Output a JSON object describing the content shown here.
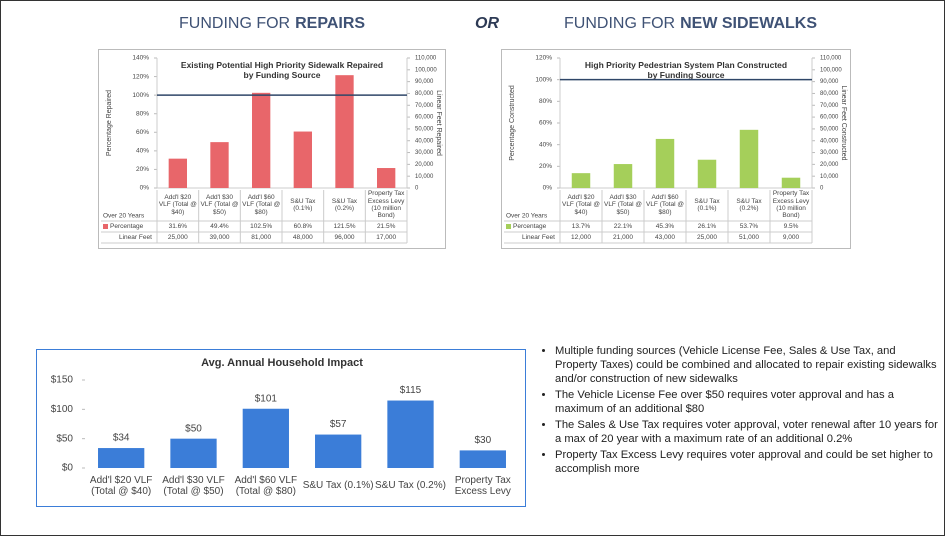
{
  "header": {
    "left": {
      "text": "FUNDING FOR",
      "emphasis": "REPAIRS"
    },
    "middle": "OR",
    "right": {
      "text": "FUNDING FOR",
      "emphasis": "NEW SIDEWALKS"
    }
  },
  "chart_data": [
    {
      "type": "bar",
      "title": "Existing Potential High Priority Sidewalk Repaired by Funding Source",
      "y_label": "Percentage Repaired",
      "y2_label": "Linear Feet Repaired",
      "categories": [
        "Add'l $20 VLF (Total @ $40)",
        "Add'l $30 VLF (Total @ $50)",
        "Add'l $60 VLF (Total @ $80)",
        "S&U Tax (0.1%)",
        "S&U Tax (0.2%)",
        "Property Tax Excess Levy (10 million Bond)"
      ],
      "series": [
        {
          "name": "Percentage",
          "color": "#e8666a",
          "values": [
            31.6,
            49.4,
            102.5,
            60.8,
            121.5,
            21.5
          ],
          "value_labels": [
            "31.6%",
            "49.4%",
            "102.5%",
            "60.8%",
            "121.5%",
            "21.5%"
          ]
        }
      ],
      "reference_line": 100,
      "ylim": [
        0,
        140
      ],
      "yticks": [
        {
          "value": 0,
          "label": "0%"
        },
        {
          "value": 20,
          "label": "20%"
        },
        {
          "value": 40,
          "label": "40%"
        },
        {
          "value": 60,
          "label": "60%"
        },
        {
          "value": 80,
          "label": "80%"
        },
        {
          "value": 100,
          "label": "100%"
        },
        {
          "value": 120,
          "label": "120%"
        },
        {
          "value": 140,
          "label": "140%"
        }
      ],
      "y2lim": [
        0,
        110000
      ],
      "y2ticks": [
        0,
        {
          "value": 10000,
          "label": "10,000"
        },
        {
          "value": 20000,
          "label": "20,000"
        },
        {
          "value": 30000,
          "label": "30,000"
        },
        {
          "value": 40000,
          "label": "40,000"
        },
        {
          "value": 50000,
          "label": "50,000"
        },
        {
          "value": 60000,
          "label": "60,000"
        },
        {
          "value": 70000,
          "label": "70,000"
        },
        {
          "value": 80000,
          "label": "80,000"
        },
        {
          "value": 90000,
          "label": "90,000"
        },
        {
          "value": 100000,
          "label": "100,000"
        },
        {
          "value": 110000,
          "label": "110,000"
        }
      ],
      "table": {
        "corner": "Over 20 Years",
        "rows": [
          {
            "name": "Linear Feet",
            "cells": [
              "25,000",
              "39,000",
              "81,000",
              "48,000",
              "96,000",
              "17,000"
            ]
          }
        ]
      }
    },
    {
      "type": "bar",
      "title": "High Priority Pedestrian System Plan Constructed by Funding Source",
      "y_label": "Percentage Constructed",
      "y2_label": "Linear Feet Constructed",
      "categories": [
        "Add'l $20 VLF (Total @ $40)",
        "Add'l $30 VLF (Total @ $50)",
        "Add'l $60 VLF (Total @ $80)",
        "S&U Tax (0.1%)",
        "S&U Tax (0.2%)",
        "Property Tax Excess Levy (10 million Bond)"
      ],
      "series": [
        {
          "name": "Percentage",
          "color": "#a5cf5a",
          "values": [
            13.7,
            22.1,
            45.3,
            26.1,
            53.7,
            9.5
          ],
          "value_labels": [
            "13.7%",
            "22.1%",
            "45.3%",
            "26.1%",
            "53.7%",
            "9.5%"
          ]
        }
      ],
      "reference_line": 100,
      "ylim": [
        0,
        120
      ],
      "yticks": [
        {
          "value": 0,
          "label": "0%"
        },
        {
          "value": 20,
          "label": "20%"
        },
        {
          "value": 40,
          "label": "40%"
        },
        {
          "value": 60,
          "label": "60%"
        },
        {
          "value": 80,
          "label": "80%"
        },
        {
          "value": 100,
          "label": "100%"
        },
        {
          "value": 120,
          "label": "120%"
        }
      ],
      "y2lim": [
        0,
        110000
      ],
      "y2ticks": [
        0,
        {
          "value": 10000,
          "label": "10,000"
        },
        {
          "value": 20000,
          "label": "20,000"
        },
        {
          "value": 30000,
          "label": "30,000"
        },
        {
          "value": 40000,
          "label": "40,000"
        },
        {
          "value": 50000,
          "label": "50,000"
        },
        {
          "value": 60000,
          "label": "60,000"
        },
        {
          "value": 70000,
          "label": "70,000"
        },
        {
          "value": 80000,
          "label": "80,000"
        },
        {
          "value": 90000,
          "label": "90,000"
        },
        {
          "value": 100000,
          "label": "100,000"
        },
        {
          "value": 110000,
          "label": "110,000"
        }
      ],
      "table": {
        "corner": "Over 20 Years",
        "rows": [
          {
            "name": "Linear Feet",
            "cells": [
              "12,000",
              "21,000",
              "43,000",
              "25,000",
              "51,000",
              "9,000"
            ]
          }
        ]
      }
    },
    {
      "type": "bar",
      "title": "Avg. Annual Household Impact",
      "categories": [
        "Add'l $20 VLF (Total @ $40)",
        "Add'l $30 VLF (Total @ $50)",
        "Add'l $60 VLF (Total @ $80)",
        "S&U Tax (0.1%)",
        "S&U Tax (0.2%)",
        "Property Tax Excess Levy"
      ],
      "series": [
        {
          "name": "Avg. Annual Household Impact",
          "color": "#3b7dd8",
          "values": [
            34,
            50,
            101,
            57,
            115,
            30
          ],
          "value_labels": [
            "$34",
            "$50",
            "$101",
            "$57",
            "$115",
            "$30"
          ]
        }
      ],
      "ylim": [
        0,
        150
      ],
      "yticks": [
        {
          "value": 0,
          "label": "$0"
        },
        {
          "value": 50,
          "label": "$50"
        },
        {
          "value": 100,
          "label": "$100"
        },
        {
          "value": 150,
          "label": "$150"
        }
      ]
    }
  ],
  "bullets": [
    "Multiple funding sources (Vehicle License Fee, Sales & Use Tax, and Property Taxes) could be combined and allocated to repair existing sidewalks and/or construction of new sidewalks",
    "The Vehicle License Fee over $50 requires voter approval and has a maximum of an additional $80",
    "The Sales & Use Tax requires voter approval, voter renewal after 10 years for a max of 20 year with a maximum rate of an additional 0.2%",
    "Property Tax Excess Levy requires voter approval and could be set higher to accomplish more"
  ]
}
